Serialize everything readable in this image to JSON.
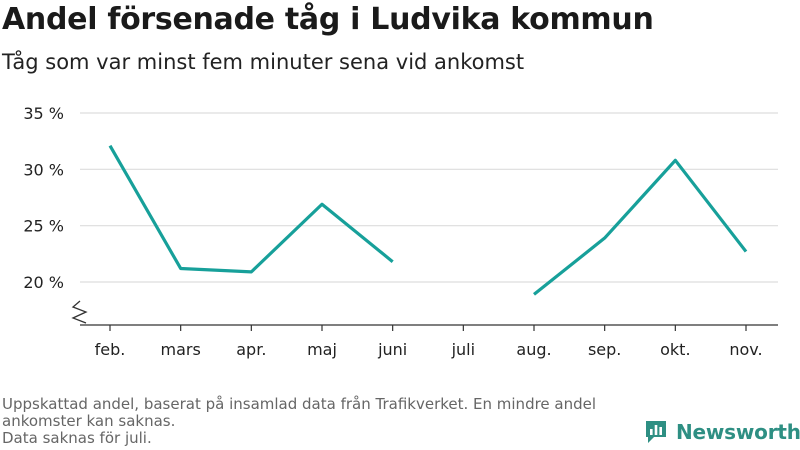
{
  "header": {
    "title": "Andel försenade tåg i Ludvika kommun",
    "subtitle": "Tåg som var minst fem minuter sena vid ankomst"
  },
  "footnote": {
    "line1": "Uppskattad andel, baserat på insamlad data från Trafikverket. En mindre andel ankomster kan saknas.",
    "line2": "Data saknas för juli."
  },
  "brand": {
    "name": "Newsworthy",
    "color": "#2e8f83",
    "icon": "bar-chart-logo-icon"
  },
  "chart_data": {
    "type": "line",
    "categories": [
      "feb.",
      "mars",
      "apr.",
      "maj",
      "juni",
      "juli",
      "aug.",
      "sep.",
      "okt.",
      "nov."
    ],
    "series": [
      {
        "values": [
          32.1,
          21.2,
          20.9,
          26.9,
          21.8,
          null,
          18.9,
          23.9,
          30.8,
          22.7
        ],
        "color": "#17a09a"
      }
    ],
    "y_ticks": [
      20,
      25,
      30,
      35
    ],
    "y_tick_labels": [
      "20 %",
      "25 %",
      "30 %",
      "35 %"
    ],
    "ylim": [
      16.2,
      35
    ],
    "y_axis_break": true,
    "grid": true,
    "legend": "none",
    "xlabel": "",
    "ylabel": ""
  }
}
